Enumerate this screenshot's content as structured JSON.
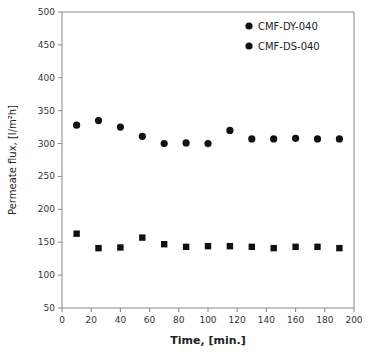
{
  "chart_data": {
    "type": "scatter",
    "xlabel": "Time, [min.]",
    "ylabel": "Permeate flux, [l/m²h]",
    "xlim": [
      0,
      200
    ],
    "ylim": [
      50,
      500
    ],
    "xticks": [
      0,
      20,
      40,
      60,
      80,
      100,
      120,
      140,
      160,
      180,
      200
    ],
    "yticks": [
      50,
      100,
      150,
      200,
      250,
      300,
      350,
      400,
      450,
      500
    ],
    "grid": false,
    "legend": "upper right",
    "x": [
      10,
      25,
      40,
      55,
      70,
      85,
      100,
      115,
      130,
      145,
      160,
      175,
      190
    ],
    "series": [
      {
        "name": "CMF-DY-040",
        "marker": "circle",
        "color": "#111111",
        "values": [
          328,
          335,
          325,
          311,
          300,
          301,
          300,
          320,
          307,
          307,
          308,
          307,
          307
        ]
      },
      {
        "name": "CMF-DS-040",
        "marker": "square",
        "color": "#111111",
        "values": [
          163,
          141,
          142,
          157,
          147,
          143,
          144,
          144,
          143,
          141,
          143,
          143,
          141
        ]
      }
    ]
  }
}
